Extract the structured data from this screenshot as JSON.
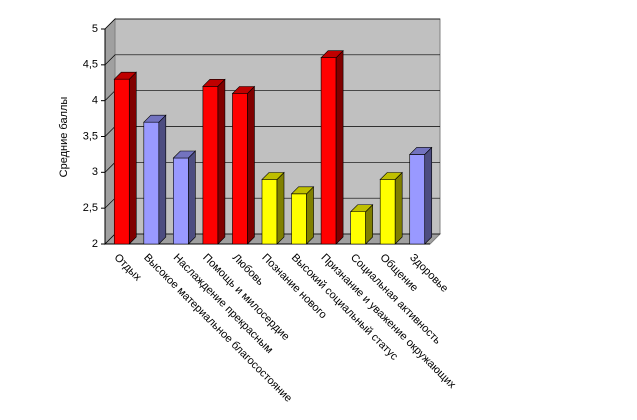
{
  "chart_data": {
    "type": "bar",
    "y_label": "Средние баллы",
    "categories": [
      "Отдых",
      "Высокое материальное благосостояние",
      "Наслаждение прекрасным",
      "Помощь и милосердие",
      "Любовь",
      "Познание нового",
      "Высокий социальный статус",
      "Признание и уважение окружающих",
      "Социальная активность",
      "Общение",
      "Здоровье"
    ],
    "values": [
      4.3,
      3.7,
      3.2,
      4.2,
      4.1,
      2.9,
      2.7,
      4.6,
      2.45,
      2.9,
      3.25
    ],
    "colors": [
      "#ff0000",
      "#9999ff",
      "#9999ff",
      "#ff0000",
      "#ff0000",
      "#ffff00",
      "#ffff00",
      "#ff0000",
      "#ffff00",
      "#ffff00",
      "#9999ff"
    ],
    "ylim": [
      2,
      5
    ],
    "yticks": [
      2,
      {
        "value": 2.5,
        "label": "2,5"
      },
      3,
      {
        "value": 3.5,
        "label": "3,5"
      },
      4,
      {
        "value": 4.5,
        "label": "4,5"
      },
      5
    ],
    "grid": true
  }
}
